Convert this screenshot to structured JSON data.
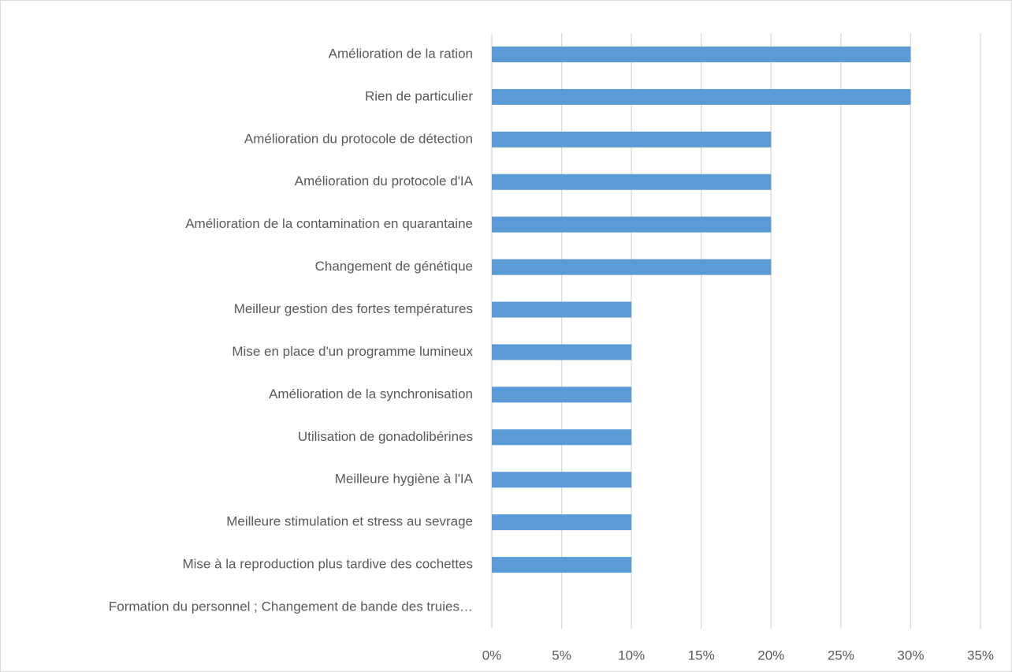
{
  "chart_data": {
    "type": "bar",
    "orientation": "horizontal",
    "categories": [
      "Amélioration de la ration",
      "Rien de particulier",
      "Amélioration du protocole de détection",
      "Amélioration du protocole d'IA",
      "Amélioration de la contamination en quarantaine",
      "Changement de génétique",
      "Meilleur gestion des fortes températures",
      "Mise en place d'un programme lumineux",
      "Amélioration de la synchronisation",
      "Utilisation de gonadolibérines",
      "Meilleure hygiène à l'IA",
      "Meilleure stimulation et stress au sevrage",
      "Mise à la reproduction plus tardive des cochettes",
      "Formation du personnel ; Changement de bande des truies…"
    ],
    "values": [
      30,
      30,
      20,
      20,
      20,
      20,
      10,
      10,
      10,
      10,
      10,
      10,
      10,
      0
    ],
    "color": "#5b9bd5",
    "xlim": [
      0,
      35
    ],
    "xticks": [
      {
        "value": 0,
        "label": "0%"
      },
      {
        "value": 5,
        "label": "5%"
      },
      {
        "value": 10,
        "label": "10%"
      },
      {
        "value": 15,
        "label": "15%"
      },
      {
        "value": 20,
        "label": "20%"
      },
      {
        "value": 25,
        "label": "25%"
      },
      {
        "value": 30,
        "label": "30%"
      },
      {
        "value": 35,
        "label": "35%"
      }
    ],
    "grid": true
  }
}
